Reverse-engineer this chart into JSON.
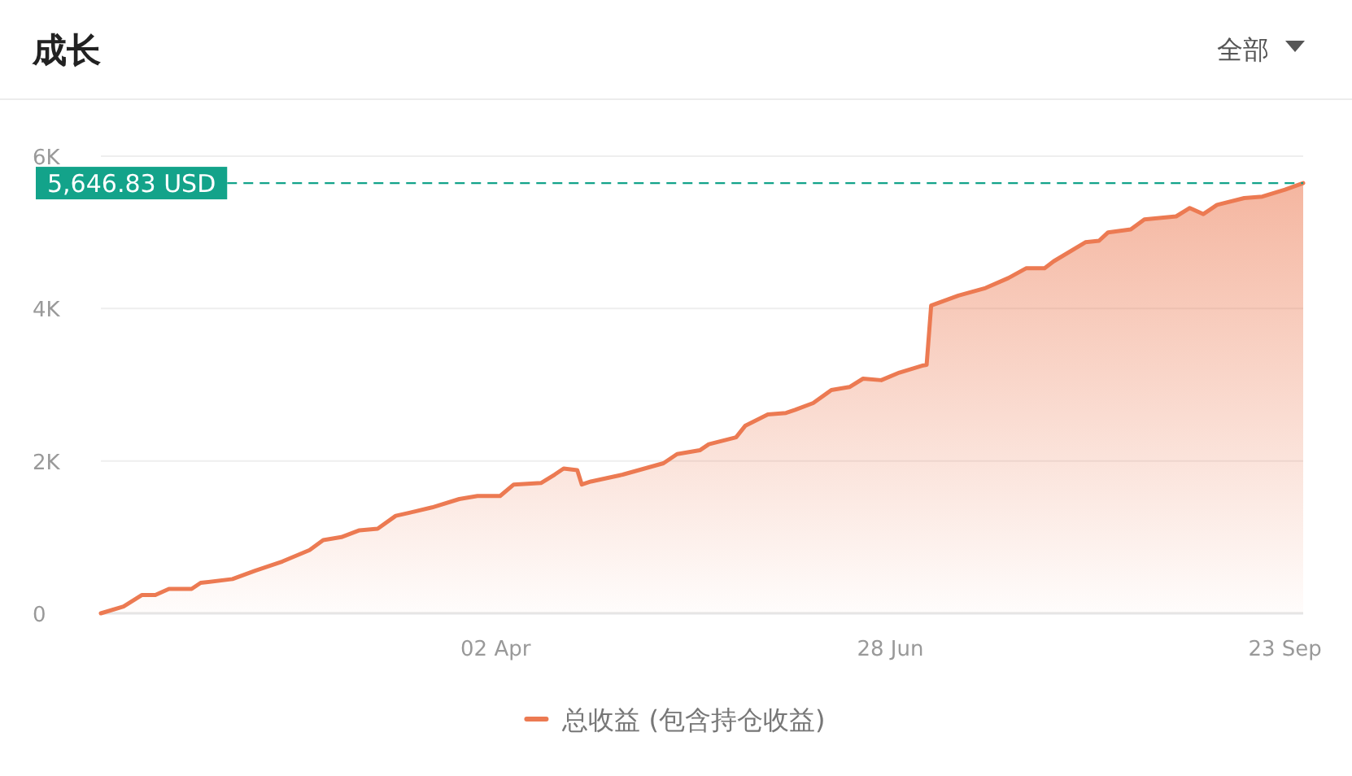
{
  "chart_data": {
    "type": "area",
    "title": "成长",
    "annotations": [
      "全部"
    ],
    "x": [
      "--01-05",
      "--01-10",
      "--01-14",
      "--01-17",
      "--01-20",
      "--01-25",
      "--01-27",
      "--02-03",
      "--02-08",
      "--02-14",
      "--02-20",
      "--02-23",
      "--02-27",
      "--03-03",
      "--03-07",
      "--03-11",
      "--03-14",
      "--03-19",
      "--03-25",
      "--03-29",
      "--04-03",
      "--04-06",
      "--04-12",
      "--04-15",
      "--04-17",
      "--04-20",
      "--04-21",
      "--04-23",
      "--04-30",
      "--05-09",
      "--05-12",
      "--05-17",
      "--05-19",
      "--05-25",
      "--05-27",
      "--06-01",
      "--06-05",
      "--06-07",
      "--06-11",
      "--06-15",
      "--06-19",
      "--06-22",
      "--06-26",
      "--06-30",
      "--07-05",
      "--07-06",
      "--07-07",
      "--07-13",
      "--07-19",
      "--07-24",
      "--07-28",
      "--08-01",
      "--08-03",
      "--08-10",
      "--08-13",
      "--08-15",
      "--08-20",
      "--08-23",
      "--08-30",
      "--09-02",
      "--09-05",
      "--09-08",
      "--09-14",
      "--09-18",
      "--09-23",
      "--09-27"
    ],
    "series": [
      {
        "name": "总收益 (包含持仓收益)",
        "color": "#ec7a52",
        "values": [
          0,
          90,
          240,
          240,
          320,
          320,
          400,
          450,
          560,
          680,
          830,
          960,
          1000,
          1090,
          1110,
          1280,
          1320,
          1390,
          1500,
          1540,
          1540,
          1690,
          1710,
          1820,
          1900,
          1880,
          1690,
          1730,
          1820,
          1970,
          2090,
          2140,
          2220,
          2310,
          2460,
          2610,
          2630,
          2670,
          2760,
          2930,
          2970,
          3080,
          3060,
          3160,
          3250,
          3260,
          4040,
          4170,
          4270,
          4400,
          4530,
          4530,
          4620,
          4870,
          4890,
          5000,
          5040,
          5170,
          5210,
          5320,
          5240,
          5360,
          5450,
          5470,
          5560,
          5646.83
        ]
      }
    ],
    "xlim": [
      "--01-05",
      "--09-27"
    ],
    "xticks": [
      {
        "value": "--04-02",
        "label": "02 Apr"
      },
      {
        "value": "--06-28",
        "label": "28 Jun"
      },
      {
        "value": "--09-23",
        "label": "23 Sep"
      }
    ],
    "ylim": [
      0,
      6000
    ],
    "yticks": [
      0,
      {
        "value": 2000,
        "label": "2K"
      },
      {
        "value": 4000,
        "label": "4K"
      },
      {
        "value": 6000,
        "label": "6K"
      }
    ],
    "ref_lines": [
      {
        "axis": "y",
        "value": 5646.83,
        "label": "5,646.83 USD",
        "color": "#13a38a",
        "line_style": "dashed"
      }
    ],
    "grid": "y",
    "legend": "bottom",
    "marker": "none",
    "line_style": "solid"
  }
}
